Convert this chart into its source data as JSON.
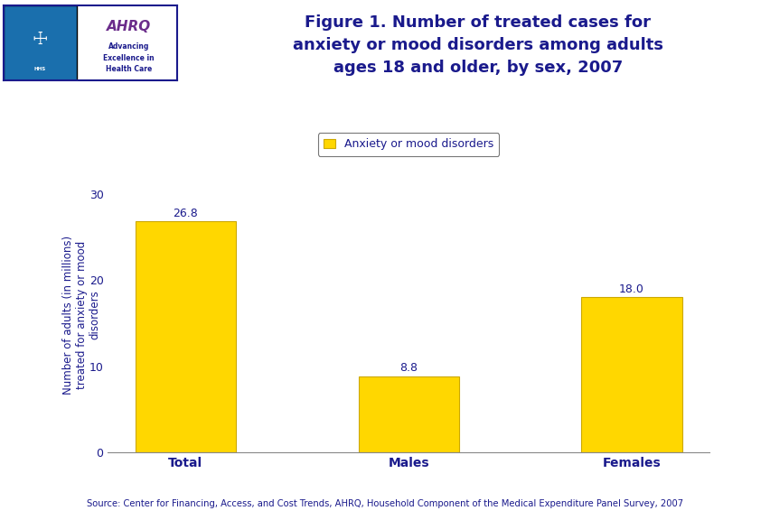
{
  "categories": [
    "Total",
    "Males",
    "Females"
  ],
  "values": [
    26.8,
    8.8,
    18.0
  ],
  "bar_color": "#FFD700",
  "bar_edgecolor": "#CCA800",
  "title_line1": "Figure 1. Number of treated cases for",
  "title_line2": "anxiety or mood disorders among adults",
  "title_line3": "ages 18 and older, by sex, 2007",
  "title_color": "#1a1a8c",
  "ylabel": "Number of adults (in millions)\ntreated for anxiety or mood\ndisorders",
  "ylabel_color": "#1a1a8c",
  "legend_label": "Anxiety or mood disorders",
  "ylim": [
    0,
    32
  ],
  "yticks": [
    0,
    10,
    20,
    30
  ],
  "source_text": "Source: Center for Financing, Access, and Cost Trends, AHRQ, Household Component of the Medical Expenditure Panel Survey, 2007",
  "source_color": "#1a1a8c",
  "background_color": "#FFFFFF",
  "divider_color": "#00008B",
  "value_fontsize": 9,
  "axis_label_color": "#1a1a8c",
  "tick_color": "#1a1a8c",
  "logo_blue_bg": "#1a6fad",
  "logo_box_bg": "#FFFFFF",
  "logo_border": "#1a1a8c"
}
